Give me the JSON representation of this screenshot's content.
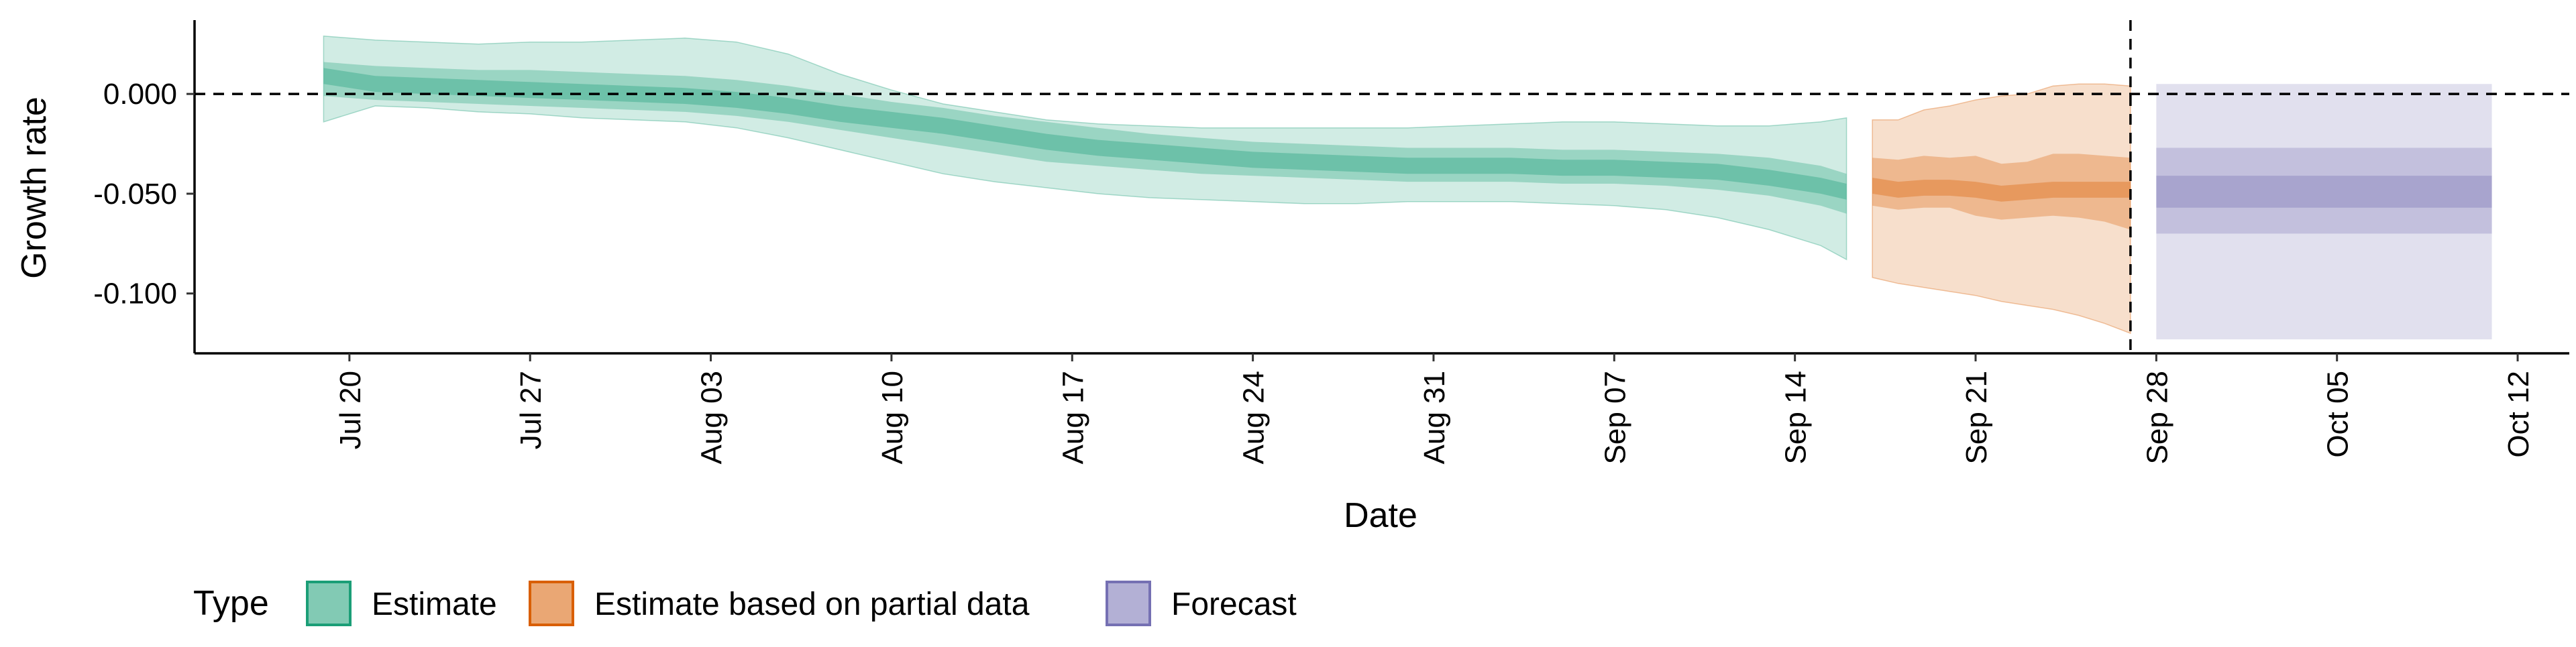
{
  "chart_data": {
    "type": "area",
    "xlabel": "Date",
    "ylabel": "Growth rate",
    "x_ticks": [
      "Jul 20",
      "Jul 27",
      "Aug 03",
      "Aug 10",
      "Aug 17",
      "Aug 24",
      "Aug 31",
      "Sep 07",
      "Sep 14",
      "Sep 21",
      "Sep 28",
      "Oct 05",
      "Oct 12"
    ],
    "y_ticks": [
      "0.000",
      "-0.050",
      "-0.100"
    ],
    "y_tick_values": [
      0.0,
      -0.05,
      -0.1
    ],
    "ylim": [
      -0.13,
      0.037
    ],
    "xlim": [
      "2020-07-14",
      "2020-10-14"
    ],
    "reference_lines": [
      {
        "axis": "y",
        "value": 0,
        "style": "dashed"
      },
      {
        "axis": "x",
        "value": "2020-09-27",
        "style": "dashed"
      }
    ],
    "legend": {
      "title": "Type",
      "position": "bottom-left",
      "entries": [
        "Estimate",
        "Estimate based on partial data",
        "Forecast"
      ]
    },
    "colors": {
      "Estimate": "#1b9e77",
      "Estimate based on partial data": "#d95f02",
      "Forecast": "#7570b3"
    },
    "series": [
      {
        "name": "Estimate",
        "x": [
          "2020-07-19",
          "2020-07-21",
          "2020-07-23",
          "2020-07-25",
          "2020-07-27",
          "2020-07-29",
          "2020-07-31",
          "2020-08-02",
          "2020-08-04",
          "2020-08-06",
          "2020-08-08",
          "2020-08-10",
          "2020-08-12",
          "2020-08-14",
          "2020-08-16",
          "2020-08-18",
          "2020-08-20",
          "2020-08-22",
          "2020-08-24",
          "2020-08-26",
          "2020-08-28",
          "2020-08-30",
          "2020-09-01",
          "2020-09-03",
          "2020-09-05",
          "2020-09-07",
          "2020-09-09",
          "2020-09-11",
          "2020-09-13",
          "2020-09-15",
          "2020-09-16"
        ],
        "median": [
          0.009,
          0.005,
          0.004,
          0.003,
          0.002,
          0.001,
          0.0,
          -0.001,
          -0.003,
          -0.006,
          -0.01,
          -0.013,
          -0.016,
          -0.02,
          -0.024,
          -0.027,
          -0.029,
          -0.031,
          -0.033,
          -0.034,
          -0.035,
          -0.036,
          -0.036,
          -0.036,
          -0.037,
          -0.037,
          -0.038,
          -0.039,
          -0.042,
          -0.046,
          -0.049
        ],
        "lower_90": [
          -0.014,
          -0.006,
          -0.007,
          -0.009,
          -0.01,
          -0.012,
          -0.013,
          -0.014,
          -0.017,
          -0.022,
          -0.028,
          -0.034,
          -0.04,
          -0.044,
          -0.047,
          -0.05,
          -0.052,
          -0.053,
          -0.054,
          -0.055,
          -0.055,
          -0.054,
          -0.054,
          -0.054,
          -0.055,
          -0.056,
          -0.058,
          -0.062,
          -0.068,
          -0.076,
          -0.083
        ],
        "upper_90": [
          0.029,
          0.027,
          0.026,
          0.025,
          0.026,
          0.026,
          0.027,
          0.028,
          0.026,
          0.02,
          0.01,
          0.002,
          -0.005,
          -0.009,
          -0.013,
          -0.015,
          -0.016,
          -0.017,
          -0.017,
          -0.017,
          -0.017,
          -0.017,
          -0.016,
          -0.015,
          -0.014,
          -0.014,
          -0.015,
          -0.016,
          -0.016,
          -0.014,
          -0.012
        ],
        "lower_50": [
          -0.001,
          -0.003,
          -0.004,
          -0.005,
          -0.006,
          -0.007,
          -0.008,
          -0.009,
          -0.011,
          -0.014,
          -0.018,
          -0.022,
          -0.026,
          -0.03,
          -0.034,
          -0.036,
          -0.038,
          -0.04,
          -0.041,
          -0.042,
          -0.043,
          -0.044,
          -0.044,
          -0.044,
          -0.045,
          -0.045,
          -0.046,
          -0.048,
          -0.051,
          -0.056,
          -0.06
        ],
        "upper_50": [
          0.016,
          0.014,
          0.013,
          0.012,
          0.012,
          0.011,
          0.01,
          0.009,
          0.007,
          0.004,
          0.0,
          -0.004,
          -0.007,
          -0.011,
          -0.014,
          -0.017,
          -0.02,
          -0.022,
          -0.024,
          -0.025,
          -0.026,
          -0.027,
          -0.027,
          -0.027,
          -0.028,
          -0.028,
          -0.029,
          -0.03,
          -0.032,
          -0.036,
          -0.04
        ]
      },
      {
        "name": "Estimate based on partial data",
        "x": [
          "2020-09-17",
          "2020-09-18",
          "2020-09-19",
          "2020-09-20",
          "2020-09-21",
          "2020-09-22",
          "2020-09-23",
          "2020-09-24",
          "2020-09-25",
          "2020-09-26",
          "2020-09-27"
        ],
        "median": [
          -0.046,
          -0.048,
          -0.047,
          -0.047,
          -0.048,
          -0.05,
          -0.049,
          -0.048,
          -0.048,
          -0.048,
          -0.048
        ],
        "lower_90": [
          -0.092,
          -0.095,
          -0.097,
          -0.099,
          -0.101,
          -0.104,
          -0.106,
          -0.108,
          -0.111,
          -0.115,
          -0.12
        ],
        "upper_90": [
          -0.013,
          -0.013,
          -0.008,
          -0.006,
          -0.003,
          -0.001,
          0.0,
          0.004,
          0.005,
          0.005,
          0.004
        ],
        "lower_50": [
          -0.056,
          -0.058,
          -0.057,
          -0.057,
          -0.061,
          -0.063,
          -0.062,
          -0.061,
          -0.062,
          -0.064,
          -0.068
        ],
        "upper_50": [
          -0.032,
          -0.033,
          -0.031,
          -0.032,
          -0.031,
          -0.035,
          -0.034,
          -0.03,
          -0.03,
          -0.031,
          -0.032
        ]
      },
      {
        "name": "Forecast",
        "x": [
          "2020-09-28",
          "2020-10-11"
        ],
        "median": [
          -0.049,
          -0.049
        ],
        "lower_90": [
          -0.123,
          -0.123
        ],
        "upper_90": [
          0.005,
          0.005
        ],
        "lower_50": [
          -0.07,
          -0.07
        ],
        "upper_50": [
          -0.027,
          -0.027
        ],
        "inner_lower": [
          -0.057,
          -0.057
        ],
        "inner_upper": [
          -0.041,
          -0.041
        ]
      }
    ]
  }
}
